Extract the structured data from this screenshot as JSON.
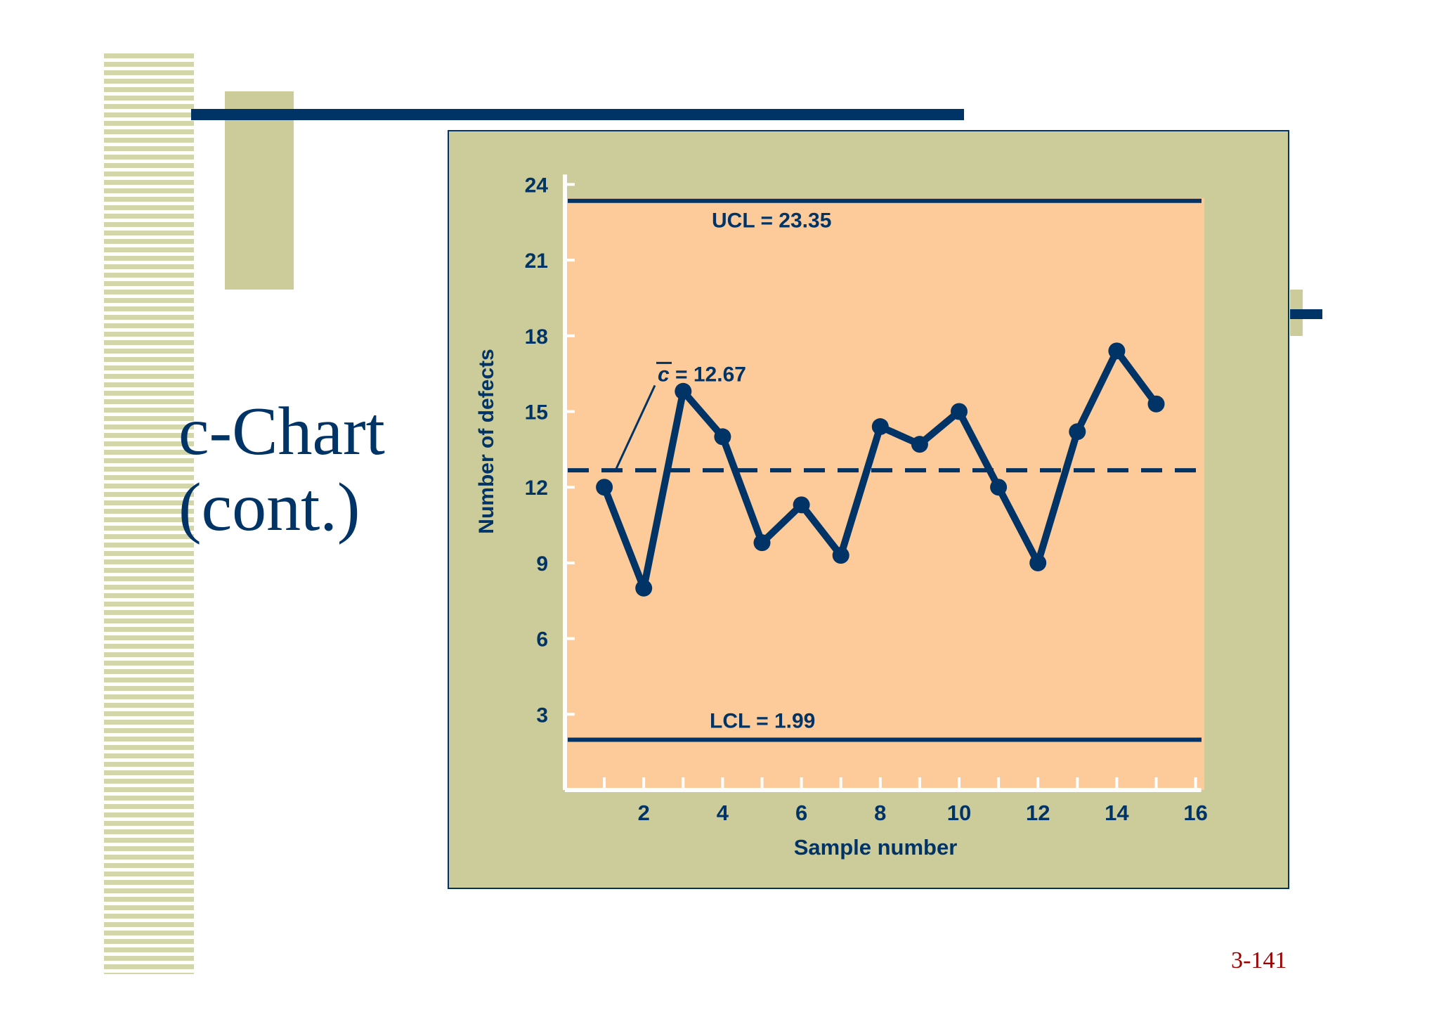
{
  "slide": {
    "title_line1": "c-Chart",
    "title_line2": "(cont.)",
    "page_number": "3-141"
  },
  "colors": {
    "navy": "#003366",
    "olive": "#cccc9a",
    "plot_fill": "#fdca9a",
    "page_number": "#990000"
  },
  "chart_data": {
    "type": "line",
    "xlabel": "Sample number",
    "ylabel": "Number of defects",
    "xlim": [
      0,
      16
    ],
    "ylim": [
      0,
      24
    ],
    "x_ticks": [
      2,
      4,
      6,
      8,
      10,
      12,
      14,
      16
    ],
    "y_ticks": [
      3,
      6,
      9,
      12,
      15,
      18,
      21,
      24
    ],
    "series": [
      {
        "x": [
          1,
          2,
          3,
          4,
          5,
          6,
          7,
          8,
          9,
          10,
          11,
          12,
          13,
          14,
          15
        ],
        "values": [
          12,
          8,
          15.8,
          14,
          9.8,
          11.3,
          9.3,
          14.4,
          13.7,
          15,
          12,
          9,
          14.2,
          17.4,
          15.3
        ]
      }
    ],
    "control_lines": [
      {
        "name": "UCL",
        "value": 23.35,
        "label": "UCL = 23.35",
        "style": "solid"
      },
      {
        "name": "center",
        "value": 12.67,
        "label_symbol": "c",
        "label": " = 12.67",
        "style": "dashed"
      },
      {
        "name": "LCL",
        "value": 1.99,
        "label": "LCL = 1.99",
        "style": "solid"
      }
    ]
  }
}
